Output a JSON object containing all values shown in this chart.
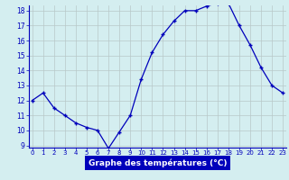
{
  "hours": [
    0,
    1,
    2,
    3,
    4,
    5,
    6,
    7,
    8,
    9,
    10,
    11,
    12,
    13,
    14,
    15,
    16,
    17,
    18,
    19,
    20,
    21,
    22,
    23
  ],
  "temperatures": [
    12.0,
    12.5,
    11.5,
    11.0,
    10.5,
    10.2,
    10.0,
    8.8,
    9.9,
    11.0,
    13.4,
    15.2,
    16.4,
    17.3,
    18.0,
    18.0,
    18.3,
    18.5,
    18.5,
    17.0,
    15.7,
    14.2,
    13.0,
    12.5
  ],
  "xlabel": "Graphe des températures (°C)",
  "ylim_min": 9,
  "ylim_max": 18,
  "yticks": [
    9,
    10,
    11,
    12,
    13,
    14,
    15,
    16,
    17,
    18
  ],
  "xtick_labels": [
    "0",
    "1",
    "2",
    "3",
    "4",
    "5",
    "6",
    "7",
    "8",
    "9",
    "10",
    "11",
    "12",
    "13",
    "14",
    "15",
    "16",
    "17",
    "18",
    "19",
    "20",
    "21",
    "22",
    "23"
  ],
  "line_color": "#0000bb",
  "marker": "+",
  "marker_color": "#0000bb",
  "bg_color": "#d4eef0",
  "grid_color": "#b8c8c8",
  "axis_color": "#0000bb",
  "xlabel_bg": "#0000bb",
  "xlabel_text_color": "#ffffff"
}
